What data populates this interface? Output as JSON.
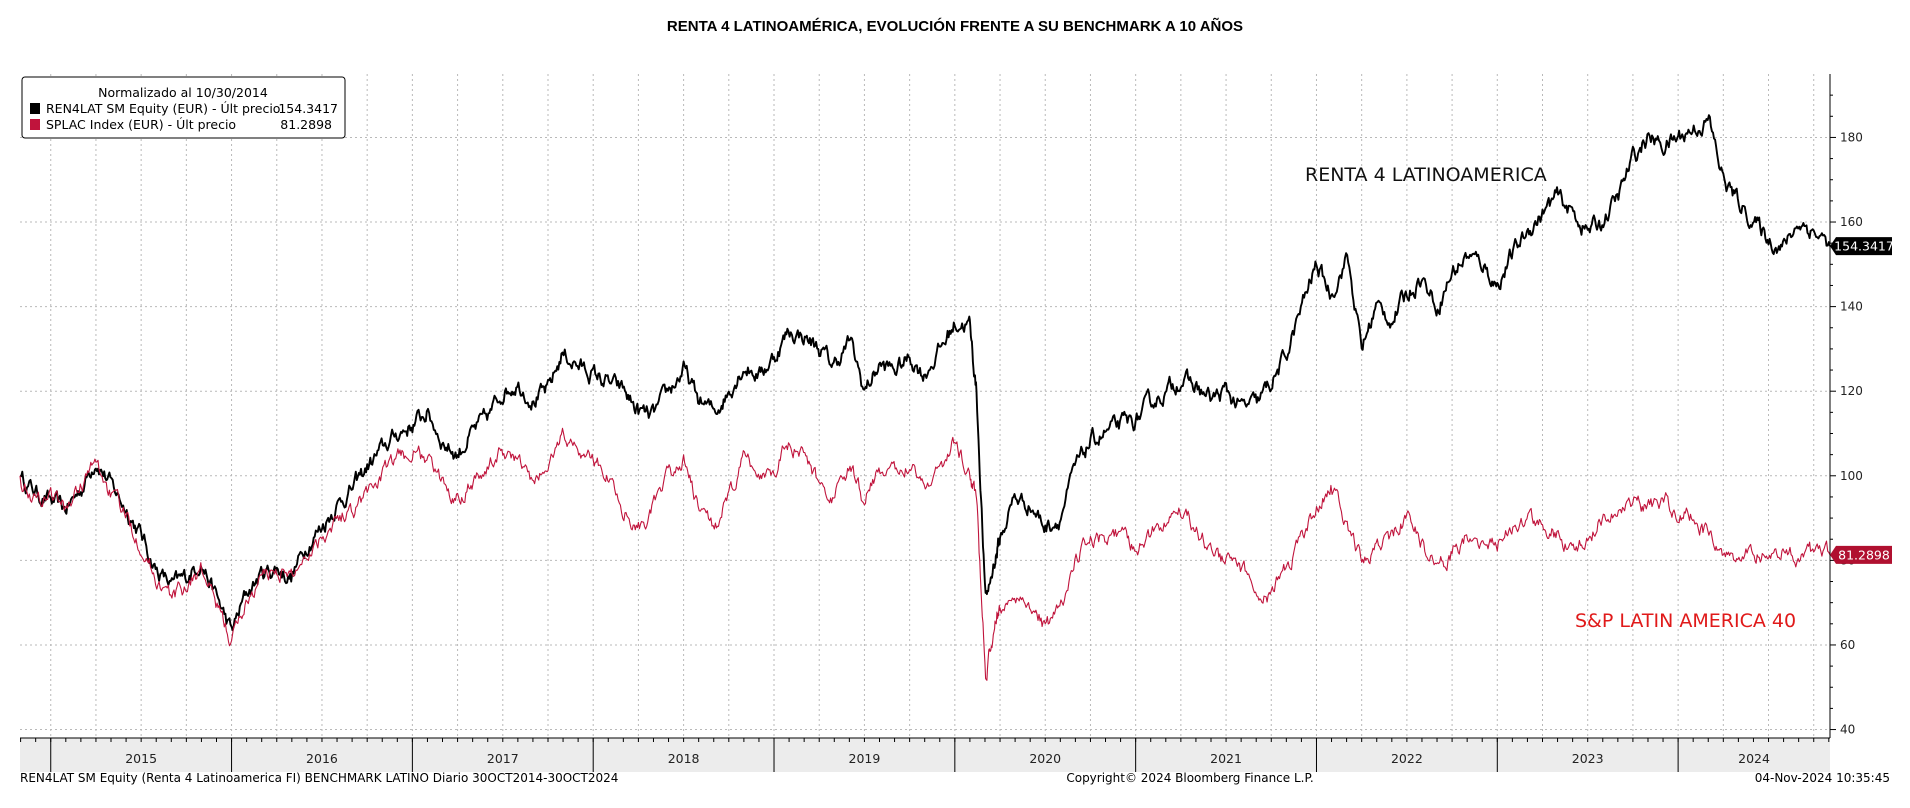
{
  "chart_data": {
    "type": "line",
    "title": "RENTA 4 LATINOAMÉRICA, EVOLUCIÓN FRENTE A SU BENCHMARK A 10 AÑOS",
    "xlabel": "",
    "ylabel": "",
    "ylim": [
      38,
      195
    ],
    "y_ticks": [
      40,
      60,
      80,
      100,
      120,
      140,
      160,
      180
    ],
    "x_range": [
      2014.83,
      2024.84
    ],
    "x_year_labels": [
      "2015",
      "2016",
      "2017",
      "2018",
      "2019",
      "2020",
      "2021",
      "2022",
      "2023",
      "2024"
    ],
    "grid": true,
    "legend_position": "top-left",
    "legend": {
      "header": "Normalizado al 10/30/2014",
      "items": [
        {
          "label": "REN4LAT SM Equity (EUR) - Últ precio",
          "value": "154.3417",
          "color": "#000000"
        },
        {
          "label": "SPLAC Index (EUR) - Últ precio",
          "value": "81.2898",
          "color": "#c0143c"
        }
      ]
    },
    "annotations": [
      {
        "text": "RENTA 4 LATINOAMERICA",
        "color": "#111111"
      },
      {
        "text": "S&P LATIN AMERICA 40",
        "color": "#e01a1a"
      }
    ],
    "series": [
      {
        "name": "REN4LAT SM Equity (EUR)",
        "color": "#000000",
        "last_label": "154.3417",
        "x": [
          2014.83,
          2014.92,
          2015.0,
          2015.08,
          2015.17,
          2015.25,
          2015.33,
          2015.42,
          2015.5,
          2015.58,
          2015.67,
          2015.75,
          2015.83,
          2015.92,
          2016.0,
          2016.08,
          2016.17,
          2016.25,
          2016.33,
          2016.42,
          2016.5,
          2016.58,
          2016.67,
          2016.75,
          2016.83,
          2016.92,
          2017.0,
          2017.08,
          2017.17,
          2017.25,
          2017.33,
          2017.42,
          2017.5,
          2017.58,
          2017.67,
          2017.75,
          2017.83,
          2017.92,
          2018.0,
          2018.08,
          2018.17,
          2018.25,
          2018.33,
          2018.42,
          2018.5,
          2018.58,
          2018.67,
          2018.75,
          2018.83,
          2018.92,
          2019.0,
          2019.08,
          2019.17,
          2019.25,
          2019.33,
          2019.42,
          2019.5,
          2019.58,
          2019.67,
          2019.75,
          2019.83,
          2019.92,
          2020.0,
          2020.08,
          2020.12,
          2020.17,
          2020.22,
          2020.25,
          2020.33,
          2020.42,
          2020.5,
          2020.58,
          2020.67,
          2020.75,
          2020.83,
          2020.92,
          2021.0,
          2021.08,
          2021.17,
          2021.25,
          2021.33,
          2021.42,
          2021.5,
          2021.58,
          2021.67,
          2021.75,
          2021.83,
          2021.92,
          2022.0,
          2022.08,
          2022.17,
          2022.25,
          2022.33,
          2022.42,
          2022.5,
          2022.58,
          2022.67,
          2022.75,
          2022.83,
          2022.92,
          2023.0,
          2023.08,
          2023.17,
          2023.25,
          2023.33,
          2023.42,
          2023.5,
          2023.58,
          2023.67,
          2023.75,
          2023.83,
          2023.92,
          2024.0,
          2024.08,
          2024.17,
          2024.25,
          2024.33,
          2024.42,
          2024.5,
          2024.58,
          2024.67,
          2024.75,
          2024.84
        ],
        "y": [
          100,
          96,
          94,
          92,
          97,
          104,
          98,
          92,
          86,
          78,
          74,
          76,
          80,
          71,
          63,
          72,
          77,
          78,
          76,
          84,
          88,
          93,
          97,
          102,
          106,
          110,
          112,
          115,
          108,
          105,
          110,
          114,
          120,
          122,
          118,
          120,
          129,
          126,
          124,
          122,
          120,
          115,
          114,
          120,
          125,
          118,
          115,
          120,
          126,
          124,
          128,
          134,
          133,
          130,
          126,
          132,
          120,
          126,
          125,
          128,
          124,
          130,
          136,
          136,
          120,
          70,
          80,
          85,
          95,
          93,
          88,
          90,
          102,
          108,
          110,
          112,
          113,
          117,
          120,
          123,
          121,
          118,
          120,
          116,
          117,
          122,
          128,
          140,
          150,
          143,
          152,
          130,
          140,
          137,
          143,
          147,
          140,
          148,
          152,
          150,
          145,
          152,
          158,
          162,
          166,
          162,
          158,
          160,
          166,
          175,
          180,
          178,
          180,
          182,
          184,
          170,
          165,
          160,
          156,
          154,
          160,
          158,
          154.3
        ]
      },
      {
        "name": "SPLAC Index (EUR)",
        "color": "#c0143c",
        "last_label": "81.2898",
        "x": [
          2014.83,
          2014.92,
          2015.0,
          2015.08,
          2015.17,
          2015.25,
          2015.33,
          2015.42,
          2015.5,
          2015.58,
          2015.67,
          2015.75,
          2015.83,
          2015.92,
          2016.0,
          2016.08,
          2016.17,
          2016.25,
          2016.33,
          2016.42,
          2016.5,
          2016.58,
          2016.67,
          2016.75,
          2016.83,
          2016.92,
          2017.0,
          2017.08,
          2017.17,
          2017.25,
          2017.33,
          2017.42,
          2017.5,
          2017.58,
          2017.67,
          2017.75,
          2017.83,
          2017.92,
          2018.0,
          2018.08,
          2018.17,
          2018.25,
          2018.33,
          2018.42,
          2018.5,
          2018.58,
          2018.67,
          2018.75,
          2018.83,
          2018.92,
          2019.0,
          2019.08,
          2019.17,
          2019.25,
          2019.33,
          2019.42,
          2019.5,
          2019.58,
          2019.67,
          2019.75,
          2019.83,
          2019.92,
          2020.0,
          2020.08,
          2020.12,
          2020.17,
          2020.22,
          2020.25,
          2020.33,
          2020.42,
          2020.5,
          2020.58,
          2020.67,
          2020.75,
          2020.83,
          2020.92,
          2021.0,
          2021.08,
          2021.17,
          2021.25,
          2021.33,
          2021.42,
          2021.5,
          2021.58,
          2021.67,
          2021.75,
          2021.83,
          2021.92,
          2022.0,
          2022.08,
          2022.17,
          2022.25,
          2022.33,
          2022.42,
          2022.5,
          2022.58,
          2022.67,
          2022.75,
          2022.83,
          2022.92,
          2023.0,
          2023.08,
          2023.17,
          2023.25,
          2023.33,
          2023.42,
          2023.5,
          2023.58,
          2023.67,
          2023.75,
          2023.83,
          2023.92,
          2024.0,
          2024.08,
          2024.17,
          2024.25,
          2024.33,
          2024.42,
          2024.5,
          2024.58,
          2024.67,
          2024.75,
          2024.84
        ],
        "y": [
          100,
          94,
          96,
          92,
          98,
          103,
          96,
          90,
          84,
          76,
          71,
          74,
          78,
          69,
          61,
          70,
          76,
          78,
          76,
          82,
          86,
          90,
          92,
          96,
          100,
          104,
          106,
          104,
          98,
          95,
          99,
          102,
          106,
          104,
          98,
          102,
          110,
          106,
          104,
          100,
          92,
          88,
          92,
          100,
          104,
          92,
          88,
          94,
          104,
          100,
          102,
          108,
          104,
          98,
          95,
          102,
          94,
          102,
          100,
          104,
          98,
          102,
          108,
          100,
          95,
          52,
          65,
          68,
          72,
          70,
          64,
          68,
          80,
          84,
          85,
          86,
          82,
          86,
          90,
          92,
          88,
          82,
          80,
          78,
          74,
          72,
          78,
          85,
          92,
          98,
          88,
          80,
          82,
          86,
          90,
          84,
          78,
          82,
          86,
          82,
          84,
          88,
          90,
          88,
          86,
          82,
          86,
          90,
          92,
          94,
          92,
          94,
          92,
          90,
          86,
          82,
          80,
          82,
          80,
          82,
          81,
          82,
          81.3
        ]
      }
    ]
  },
  "footer": {
    "left": "REN4LAT SM Equity (Renta 4 Latinoamerica FI) BENCHMARK LATINO  Diario 30OCT2014-30OCT2024",
    "center": "Copyright© 2024 Bloomberg Finance L.P.",
    "right": "04-Nov-2024 10:35:45"
  }
}
